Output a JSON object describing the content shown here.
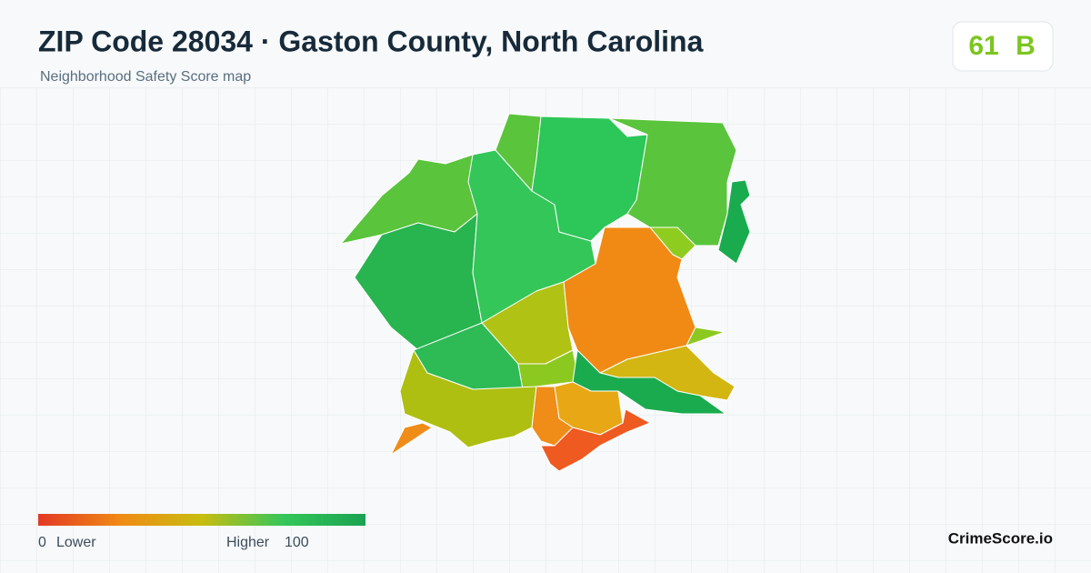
{
  "header": {
    "title": "ZIP Code 28034 · Gaston County, North Carolina",
    "subtitle": "Neighborhood Safety Score map"
  },
  "score": {
    "value": 61,
    "grade": "B"
  },
  "legend": {
    "min": 0,
    "min_label": "Lower",
    "max_label": "Higher",
    "max": 100
  },
  "brand": "CrimeScore.io"
}
